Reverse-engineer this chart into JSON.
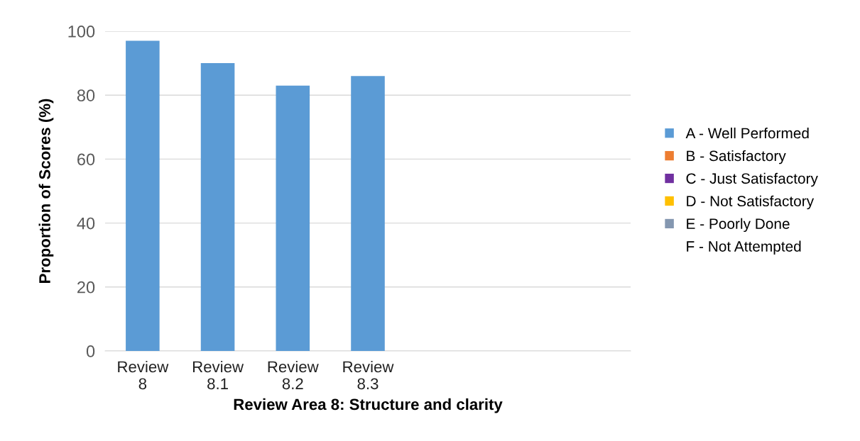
{
  "chart_data": {
    "type": "bar",
    "xlabel": "Review Area 8: Structure and clarity",
    "ylabel": "Proportion of Scores (%)",
    "categories": [
      "Review\n8",
      "Review\n8.1",
      "Review\n8.2",
      "Review\n8.3",
      null,
      null,
      null
    ],
    "series": [
      {
        "name": "A - Well Performed",
        "color": "#5b9bd5",
        "values": [
          97,
          90,
          83,
          86,
          null,
          null,
          null
        ]
      },
      {
        "name": "B - Satisfactory",
        "color": "#ed7d31",
        "values": [
          null,
          null,
          null,
          null,
          null,
          null,
          null
        ]
      },
      {
        "name": "C - Just Satisfactory",
        "color": "#7030a0",
        "values": [
          null,
          null,
          null,
          null,
          null,
          null,
          null
        ]
      },
      {
        "name": "D - Not Satisfactory",
        "color": "#ffc000",
        "values": [
          null,
          null,
          null,
          null,
          null,
          null,
          null
        ]
      },
      {
        "name": "E - Poorly Done",
        "color": "#8497b0",
        "values": [
          null,
          null,
          null,
          null,
          null,
          null,
          null
        ]
      },
      {
        "name": "F - Not Attempted",
        "values": [
          null,
          null,
          null,
          null,
          null,
          null,
          null
        ]
      }
    ],
    "ylim": [
      0,
      100
    ],
    "yticks": [
      0,
      20,
      40,
      60,
      80,
      100
    ],
    "grid": "y",
    "legend": "right"
  }
}
